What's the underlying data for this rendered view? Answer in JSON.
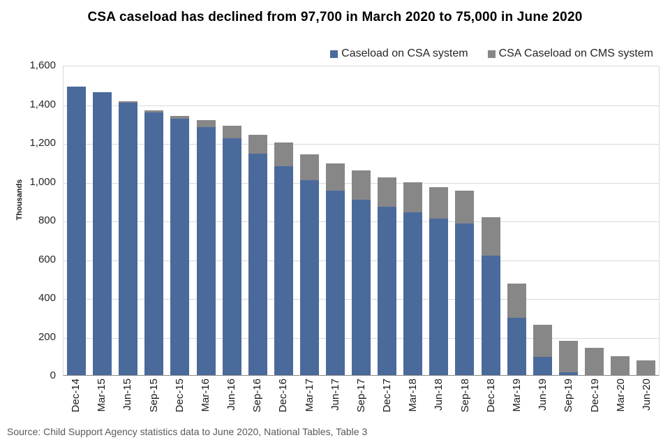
{
  "title": "CSA caseload has declined from 97,700 in March 2020 to 75,000 in June 2020",
  "source": "Source: Child Support Agency statistics data to June 2020, National Tables, Table 3",
  "colors": {
    "csa_blue": "#4a6a9c",
    "cms_gray": "#878787",
    "gridline": "#d9d9d9",
    "axis_line": "#898989"
  },
  "legend": {
    "items": [
      {
        "label": "Caseload on CSA system",
        "color": "#4a6a9c"
      },
      {
        "label": "CSA Caseload on CMS system",
        "color": "#878787"
      }
    ]
  },
  "chart_data": {
    "type": "bar",
    "stacked": true,
    "title": "CSA caseload has declined from 97,700 in March 2020 to 75,000 in June 2020",
    "xlabel": "",
    "ylabel": "Thousands",
    "ylim": [
      0,
      1600
    ],
    "ytick_step": 200,
    "ytick_labels_top_down": [
      "1,600",
      "1,400",
      "1,200",
      "1,000",
      "800",
      "600",
      "400",
      "200",
      "0"
    ],
    "grid": true,
    "legend_position": "top-right",
    "units": "thousands",
    "categories": [
      "Dec-14",
      "Mar-15",
      "Jun-15",
      "Sep-15",
      "Dec-15",
      "Mar-16",
      "Jun-16",
      "Sep-16",
      "Dec-16",
      "Mar-17",
      "Jun-17",
      "Sep-17",
      "Dec-17",
      "Mar-18",
      "Jun-18",
      "Sep-18",
      "Dec-18",
      "Mar-19",
      "Jun-19",
      "Sep-19",
      "Dec-19",
      "Mar-20",
      "Jun-20"
    ],
    "series": [
      {
        "name": "Caseload on CSA system",
        "color": "#4a6a9c",
        "values": [
          1489,
          1459,
          1407,
          1355,
          1324,
          1278,
          1222,
          1144,
          1079,
          1007,
          953,
          905,
          869,
          839,
          809,
          783,
          617,
          296,
          95,
          13,
          0,
          0,
          0
        ]
      },
      {
        "name": "CSA Caseload on CMS system",
        "color": "#878787",
        "values": [
          0,
          2,
          5,
          10,
          14,
          36,
          64,
          95,
          120,
          132,
          139,
          150,
          150,
          157,
          162,
          169,
          196,
          177,
          164,
          162,
          141,
          97.7,
          75
        ]
      }
    ]
  }
}
